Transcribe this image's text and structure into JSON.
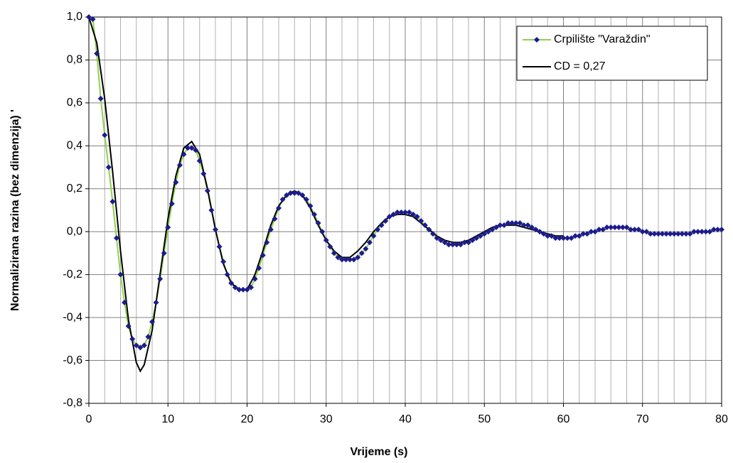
{
  "chart_data": {
    "type": "line",
    "xlabel": "Vrijeme (s)",
    "ylabel": "Normalizirana razina (bez dimenzija) '",
    "xlim": [
      0,
      80
    ],
    "ylim": [
      -0.8,
      1.0
    ],
    "xticks": [
      0,
      10,
      20,
      30,
      40,
      50,
      60,
      70,
      80
    ],
    "xminorticks": [
      2,
      4,
      6,
      8,
      12,
      14,
      16,
      18,
      22,
      24,
      26,
      28,
      32,
      34,
      36,
      38,
      42,
      44,
      46,
      48,
      52,
      54,
      56,
      58,
      62,
      64,
      66,
      68,
      72,
      74,
      76,
      78
    ],
    "yticks": [
      {
        "value": -0.8,
        "label": "-0,8"
      },
      {
        "value": -0.6,
        "label": "-0,6"
      },
      {
        "value": -0.4,
        "label": "-0,4"
      },
      {
        "value": -0.2,
        "label": "-0,2"
      },
      {
        "value": 0.0,
        "label": "0,0"
      },
      {
        "value": 0.2,
        "label": "0,2"
      },
      {
        "value": 0.4,
        "label": "0,4"
      },
      {
        "value": 0.6,
        "label": "0,6"
      },
      {
        "value": 0.8,
        "label": "0,8"
      },
      {
        "value": 1.0,
        "label": "1,0"
      }
    ],
    "grid": true,
    "legend": "upper right",
    "series": [
      {
        "name": "Crpilište \"Varaždin\"",
        "color": "#8fd14f",
        "marker_color": "#1c1c8c",
        "marker": "diamond",
        "x": [
          0,
          0.5,
          1,
          1.5,
          2,
          2.5,
          3,
          3.5,
          4,
          4.5,
          5,
          5.5,
          6,
          6.5,
          7,
          7.5,
          8,
          8.5,
          9,
          9.5,
          10,
          10.5,
          11,
          11.5,
          12,
          12.5,
          13,
          13.5,
          14,
          14.5,
          15,
          15.5,
          16,
          16.5,
          17,
          17.5,
          18,
          18.5,
          19,
          19.5,
          20,
          20.5,
          21,
          21.5,
          22,
          22.5,
          23,
          23.5,
          24,
          24.5,
          25,
          25.5,
          26,
          26.5,
          27,
          27.5,
          28,
          28.5,
          29,
          29.5,
          30,
          30.5,
          31,
          31.5,
          32,
          32.5,
          33,
          33.5,
          34,
          34.5,
          35,
          35.5,
          36,
          36.5,
          37,
          37.5,
          38,
          38.5,
          39,
          39.5,
          40,
          40.5,
          41,
          41.5,
          42,
          42.5,
          43,
          43.5,
          44,
          44.5,
          45,
          45.5,
          46,
          46.5,
          47,
          47.5,
          48,
          48.5,
          49,
          49.5,
          50,
          50.5,
          51,
          51.5,
          52,
          52.5,
          53,
          53.5,
          54,
          54.5,
          55,
          55.5,
          56,
          56.5,
          57,
          57.5,
          58,
          58.5,
          59,
          59.5,
          60,
          60.5,
          61,
          61.5,
          62,
          62.5,
          63,
          63.5,
          64,
          64.5,
          65,
          65.5,
          66,
          66.5,
          67,
          67.5,
          68,
          68.5,
          69,
          69.5,
          70,
          70.5,
          71,
          71.5,
          72,
          72.5,
          73,
          73.5,
          74,
          74.5,
          75,
          75.5,
          76,
          76.5,
          77,
          77.5,
          78,
          78.5,
          79,
          79.5,
          80
        ],
        "values": [
          1.0,
          0.99,
          0.83,
          0.62,
          0.45,
          0.3,
          0.14,
          -0.03,
          -0.2,
          -0.33,
          -0.44,
          -0.5,
          -0.53,
          -0.54,
          -0.53,
          -0.49,
          -0.42,
          -0.33,
          -0.22,
          -0.1,
          0.02,
          0.13,
          0.23,
          0.31,
          0.36,
          0.39,
          0.39,
          0.38,
          0.33,
          0.27,
          0.19,
          0.1,
          0.01,
          -0.07,
          -0.14,
          -0.2,
          -0.24,
          -0.26,
          -0.27,
          -0.27,
          -0.27,
          -0.26,
          -0.22,
          -0.17,
          -0.11,
          -0.05,
          0.01,
          0.06,
          0.11,
          0.15,
          0.17,
          0.18,
          0.18,
          0.18,
          0.17,
          0.15,
          0.12,
          0.08,
          0.04,
          0.0,
          -0.04,
          -0.07,
          -0.1,
          -0.12,
          -0.13,
          -0.13,
          -0.13,
          -0.13,
          -0.12,
          -0.1,
          -0.08,
          -0.05,
          -0.02,
          0.01,
          0.03,
          0.05,
          0.07,
          0.08,
          0.09,
          0.09,
          0.09,
          0.09,
          0.08,
          0.07,
          0.05,
          0.03,
          0.01,
          -0.01,
          -0.03,
          -0.04,
          -0.05,
          -0.06,
          -0.06,
          -0.06,
          -0.06,
          -0.05,
          -0.05,
          -0.04,
          -0.03,
          -0.02,
          -0.01,
          0.0,
          0.01,
          0.02,
          0.03,
          0.03,
          0.04,
          0.04,
          0.04,
          0.04,
          0.03,
          0.03,
          0.02,
          0.01,
          0.0,
          -0.01,
          -0.02,
          -0.02,
          -0.03,
          -0.03,
          -0.03,
          -0.03,
          -0.03,
          -0.02,
          -0.02,
          -0.01,
          -0.01,
          0.0,
          0.0,
          0.01,
          0.01,
          0.02,
          0.02,
          0.02,
          0.02,
          0.02,
          0.02,
          0.01,
          0.01,
          0.01,
          0.0,
          0.0,
          -0.01,
          -0.01,
          -0.01,
          -0.01,
          -0.01,
          -0.01,
          -0.01,
          -0.01,
          -0.01,
          -0.01,
          -0.01,
          0.0,
          0.0,
          0.0,
          0.0,
          0.0,
          0.01,
          0.01,
          0.01
        ]
      },
      {
        "name": "CD =  0,27",
        "color": "#000000",
        "x": [
          0,
          1,
          2,
          3,
          4,
          5,
          6,
          6.5,
          7,
          8,
          9,
          10,
          11,
          12,
          13,
          14,
          15,
          16,
          17,
          18,
          19,
          20,
          21,
          22,
          23,
          24,
          25,
          26,
          27,
          28,
          29,
          30,
          31,
          32,
          33,
          34,
          35,
          36,
          37,
          38,
          39,
          40,
          41,
          42,
          43,
          44,
          45,
          46,
          47,
          48,
          49,
          50,
          51,
          52,
          53,
          54,
          55,
          56,
          57,
          58,
          59,
          60
        ],
        "values": [
          1.0,
          0.88,
          0.62,
          0.28,
          -0.09,
          -0.41,
          -0.61,
          -0.65,
          -0.62,
          -0.46,
          -0.2,
          0.06,
          0.26,
          0.39,
          0.42,
          0.36,
          0.2,
          0.01,
          -0.15,
          -0.24,
          -0.27,
          -0.27,
          -0.2,
          -0.09,
          0.03,
          0.12,
          0.17,
          0.19,
          0.17,
          0.11,
          0.03,
          -0.04,
          -0.09,
          -0.12,
          -0.12,
          -0.09,
          -0.05,
          0.0,
          0.04,
          0.07,
          0.08,
          0.08,
          0.07,
          0.04,
          0.01,
          -0.02,
          -0.04,
          -0.05,
          -0.05,
          -0.04,
          -0.02,
          0.0,
          0.02,
          0.03,
          0.03,
          0.03,
          0.02,
          0.01,
          0.0,
          -0.01,
          -0.02,
          -0.02
        ]
      }
    ]
  }
}
